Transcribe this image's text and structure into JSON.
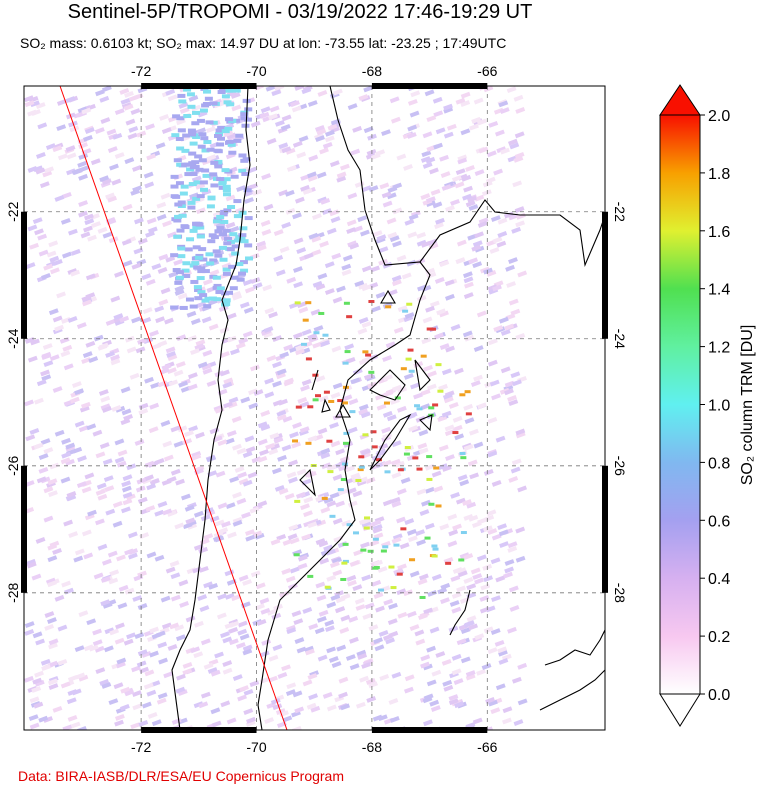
{
  "map": {
    "title": "Sentinel-5P/TROPOMI - 03/19/2022 17:46-19:29 UT",
    "subtitle": "SO₂ mass: 0.6103 kt; SO₂ max: 14.97 DU at lon: -73.55 lat: -23.25 ; 17:49UTC",
    "lonlim": [
      -74.03,
      -63.96
    ],
    "latlim": [
      -30.16,
      -20.02
    ],
    "lonticks": [
      -72,
      -70,
      -68,
      -66
    ],
    "latticks": [
      -22,
      -24,
      -26,
      -28
    ],
    "grid": true,
    "credit": "Data: BIRA-IASB/DLR/ESA/EU Copernicus Program",
    "colorbar": {
      "label": "SO₂ column TRM [DU]",
      "range": [
        0,
        2
      ],
      "ticks": [
        {
          "value": 0,
          "label": "0.0"
        },
        0.2,
        0.4,
        0.6,
        0.8,
        {
          "value": 1,
          "label": "1.0"
        },
        1.2,
        1.4,
        1.6,
        1.8,
        {
          "value": 2,
          "label": "2.0"
        }
      ],
      "colors": [
        "#ffffff",
        "#f7c8f0",
        "#d6b0f0",
        "#a4a0f0",
        "#80b8f0",
        "#60f0f0",
        "#60f0a0",
        "#50e050",
        "#e0f030",
        "#f8a000",
        "#f81000"
      ]
    }
  }
}
